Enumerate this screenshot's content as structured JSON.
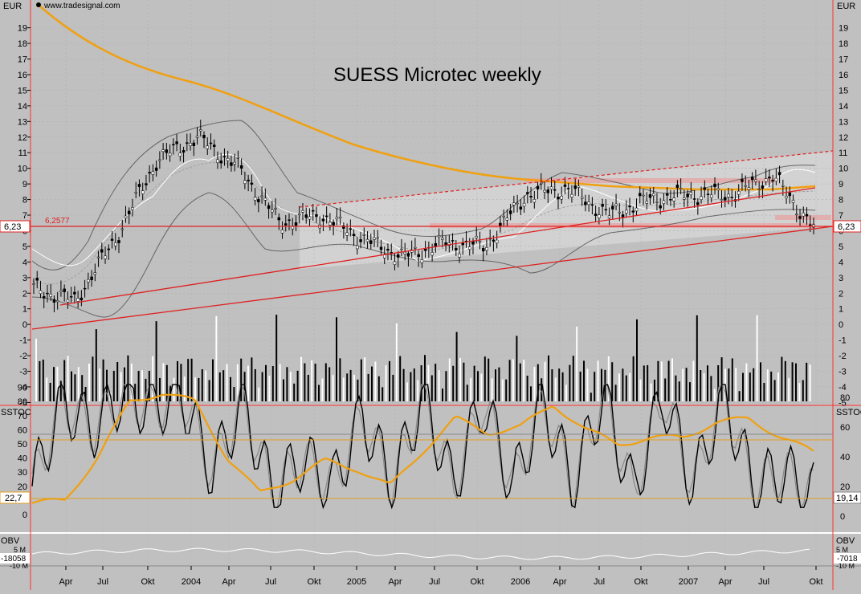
{
  "header": {
    "currency_left": "EUR",
    "currency_right": "EUR",
    "source": "www.tradesignal.com",
    "title": "SUESS Microtec weekly"
  },
  "price_panel": {
    "current_price_tag": "6,23",
    "support_label": "6,2577",
    "y_ticks": [
      "19",
      "18",
      "17",
      "16",
      "15",
      "14",
      "13",
      "12",
      "11",
      "10",
      "9",
      "8",
      "7",
      "6",
      "5",
      "4",
      "3",
      "2",
      "1",
      "0",
      "-1",
      "-2",
      "-3",
      "-4",
      "-5"
    ]
  },
  "stoch_panel": {
    "label_left": "SSTOC",
    "label_right": "SSTOC",
    "left_ticks": [
      "90",
      "80",
      "70",
      "60",
      "50",
      "40",
      "30",
      "20",
      "10",
      "0"
    ],
    "right_ticks": [
      "80",
      "60",
      "40",
      "20",
      "0"
    ],
    "left_value_tag": "22,7",
    "right_value_tag": "19,14"
  },
  "obv_panel": {
    "label_left": "OBV",
    "label_right": "OBV",
    "left_tick_top": "5 M",
    "left_tick_bottom": "-10 M",
    "right_tick_top": "5 M",
    "right_tick_bottom": "-10 M",
    "left_value_tag": "-18058",
    "right_value_tag": "-7018"
  },
  "x_axis": {
    "labels": [
      "Apr",
      "Jul",
      "Okt",
      "2004",
      "Apr",
      "Jul",
      "Okt",
      "2005",
      "Apr",
      "Jul",
      "Okt",
      "2006",
      "Apr",
      "Jul",
      "Okt",
      "2007",
      "Apr",
      "Jul",
      "Okt"
    ]
  },
  "chart_data": [
    {
      "type": "line",
      "title": "SUESS Microtec weekly",
      "ylabel": "EUR",
      "ylim": [
        -5,
        20
      ],
      "x": [
        "2003-02",
        "2003-04",
        "2003-07",
        "2003-10",
        "2004-01",
        "2004-04",
        "2004-07",
        "2004-10",
        "2005-01",
        "2005-04",
        "2005-07",
        "2005-10",
        "2006-01",
        "2006-04",
        "2006-07",
        "2006-10",
        "2007-01",
        "2007-04",
        "2007-07",
        "2007-10"
      ],
      "series": [
        {
          "name": "",
          "values": [
            2.3,
            1.5,
            5.5,
            10.5,
            12.0,
            10.0,
            6.5,
            7.0,
            5.5,
            4.3,
            5.2,
            5.0,
            8.3,
            8.7,
            7.0,
            8.0,
            8.3,
            8.3,
            9.5,
            6.2
          ]
        }
      ],
      "annotations": [
        "6,2577"
      ]
    },
    {
      "type": "line",
      "title": "SSTOC",
      "ylim": [
        0,
        95
      ],
      "series": [
        {
          "name": "",
          "values": [
            20,
            80,
            60,
            85,
            75,
            85,
            30,
            80,
            15,
            40,
            20,
            70,
            20,
            85,
            20,
            80,
            20,
            80,
            20,
            85,
            15,
            85,
            20,
            85,
            20,
            30,
            15
          ]
        },
        {
          "name": "",
          "values": [
            8,
            10,
            40,
            80,
            86,
            80,
            40,
            15,
            25,
            38,
            32,
            20,
            45,
            68,
            58,
            62,
            78,
            60,
            50,
            54,
            55,
            65,
            68,
            55,
            44
          ]
        }
      ]
    }
  ]
}
